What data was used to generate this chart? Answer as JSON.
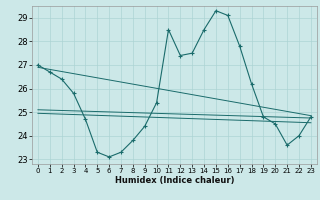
{
  "title": "",
  "xlabel": "Humidex (Indice chaleur)",
  "bg_color": "#cce8e8",
  "grid_color": "#add4d4",
  "line_color": "#1a6b6b",
  "xlim": [
    -0.5,
    23.5
  ],
  "ylim": [
    22.8,
    29.5
  ],
  "xticks": [
    0,
    1,
    2,
    3,
    4,
    5,
    6,
    7,
    8,
    9,
    10,
    11,
    12,
    13,
    14,
    15,
    16,
    17,
    18,
    19,
    20,
    21,
    22,
    23
  ],
  "yticks": [
    23,
    24,
    25,
    26,
    27,
    28,
    29
  ],
  "main_x": [
    0,
    1,
    2,
    3,
    4,
    5,
    6,
    7,
    8,
    9,
    10,
    11,
    12,
    13,
    14,
    15,
    16,
    17,
    18,
    19,
    20,
    21,
    22,
    23
  ],
  "main_y": [
    27.0,
    26.7,
    26.4,
    25.8,
    24.7,
    23.3,
    23.1,
    23.3,
    23.8,
    24.4,
    25.4,
    28.5,
    27.4,
    27.5,
    28.5,
    29.3,
    29.1,
    27.8,
    26.2,
    24.8,
    24.5,
    23.6,
    24.0,
    24.8
  ],
  "trend1_x": [
    0,
    23
  ],
  "trend1_y": [
    26.9,
    24.85
  ],
  "trend2_x": [
    0,
    23
  ],
  "trend2_y": [
    25.1,
    24.75
  ],
  "trend3_x": [
    0,
    23
  ],
  "trend3_y": [
    24.95,
    24.55
  ]
}
